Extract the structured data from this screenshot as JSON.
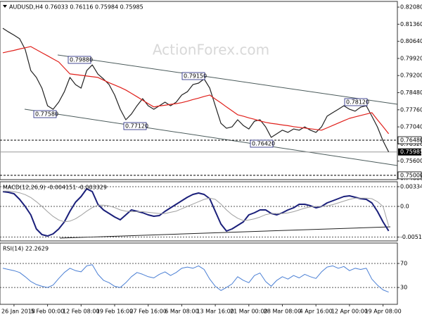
{
  "chart_data": [
    {
      "type": "line",
      "title": "AUDUSD,H4  0.76033 0.76116 0.75984 0.75985",
      "watermark": "ActionForex.com",
      "categories": [
        null,
        null,
        "26 Jan 2018",
        null,
        null,
        null,
        null,
        null,
        "5 Feb 00:00",
        null,
        null,
        null,
        null,
        null,
        "12 Feb 08:00",
        null,
        null,
        null,
        null,
        null,
        "19 Feb 16:00",
        null,
        null,
        null,
        null,
        null,
        "27 Feb 16:00",
        null,
        null,
        null,
        null,
        null,
        "6 Mar 08:00",
        null,
        null,
        null,
        null,
        null,
        "13 Mar 16:00",
        null,
        null,
        null,
        null,
        null,
        "21 Mar 00:00",
        null,
        null,
        null,
        null,
        null,
        "28 Mar 08:00",
        null,
        null,
        null,
        null,
        null,
        "4 Apr 16:00",
        null,
        null,
        null,
        null,
        null,
        "12 Apr 00:00",
        null,
        null,
        null,
        null,
        null,
        "19 Apr 08:00",
        null
      ],
      "series": [
        {
          "name": "Close",
          "color": "#222222",
          "width": 1.2,
          "values": [
            0.8119,
            0.8104,
            0.809,
            0.8075,
            0.803,
            0.7941,
            0.7912,
            0.7867,
            0.7793,
            0.7778,
            0.7808,
            0.7852,
            0.7912,
            0.7882,
            0.7867,
            0.7941,
            0.7965,
            0.7926,
            0.7906,
            0.7882,
            0.7838,
            0.7778,
            0.7734,
            0.7758,
            0.7793,
            0.7823,
            0.7793,
            0.7778,
            0.7793,
            0.7808,
            0.7793,
            0.7808,
            0.7838,
            0.7852,
            0.7882,
            0.7888,
            0.7906,
            0.7867,
            0.7793,
            0.7719,
            0.7698,
            0.7704,
            0.7734,
            0.771,
            0.7695,
            0.7728,
            0.7734,
            0.7704,
            0.766,
            0.7675,
            0.769,
            0.7681,
            0.7695,
            0.769,
            0.7704,
            0.769,
            0.7681,
            0.7704,
            0.7749,
            0.7764,
            0.7778,
            0.7793,
            0.7778,
            0.777,
            0.7787,
            0.7793,
            0.7749,
            0.7704,
            0.7645,
            0.75985
          ]
        },
        {
          "name": "MA",
          "color": "#e0201b",
          "width": 1.2,
          "values": [
            0.8016,
            0.8021,
            0.8026,
            0.8032,
            0.8037,
            0.8042,
            0.8029,
            0.8016,
            0.8003,
            0.799,
            0.7977,
            0.7952,
            0.7927,
            0.7924,
            0.7921,
            0.7918,
            0.7915,
            0.7912,
            0.7901,
            0.789,
            0.788,
            0.787,
            0.7859,
            0.7845,
            0.7831,
            0.7816,
            0.7802,
            0.7788,
            0.7792,
            0.7795,
            0.7799,
            0.7802,
            0.7806,
            0.7812,
            0.7819,
            0.7825,
            0.7832,
            0.7838,
            0.7821,
            0.7805,
            0.7788,
            0.7772,
            0.7755,
            0.7749,
            0.7742,
            0.7736,
            0.7729,
            0.7723,
            0.7719,
            0.7716,
            0.7712,
            0.7709,
            0.7705,
            0.7702,
            0.7699,
            0.7696,
            0.7693,
            0.769,
            0.77,
            0.771,
            0.772,
            0.773,
            0.774,
            0.7746,
            0.7752,
            0.7758,
            0.7764,
            0.7734,
            0.7705,
            0.7675
          ]
        }
      ],
      "ylim": [
        0.7482,
        0.8232
      ],
      "yticks": [
        {
          "value": 0.8208,
          "label": "0.82080"
        },
        {
          "value": 0.8136,
          "label": "0.81360"
        },
        {
          "value": 0.8064,
          "label": "0.80640"
        },
        {
          "value": 0.7992,
          "label": "0.79920"
        },
        {
          "value": 0.792,
          "label": "0.79200"
        },
        {
          "value": 0.7848,
          "label": "0.78480"
        },
        {
          "value": 0.7776,
          "label": "0.77760"
        },
        {
          "value": 0.7704,
          "label": "0.77040"
        },
        {
          "value": 0.7632,
          "label": "0.76320"
        },
        {
          "value": 0.756,
          "label": "0.75600"
        },
        {
          "value": 0.7488,
          "label": "0.74880"
        }
      ],
      "levels": [
        {
          "value": 0.7648,
          "label": "0.76480"
        },
        {
          "value": 0.75,
          "label": "0.75000"
        }
      ],
      "last_label": {
        "value": 0.75985,
        "label": "0.75985"
      },
      "annotations": [
        "0.79880",
        "0.79150",
        "0.77580",
        "0.77120",
        "0.76420",
        "0.78120"
      ],
      "grid": false
    },
    {
      "type": "line",
      "title": "MACD(12,26,9) -0.004151 -0.003329",
      "series": [
        {
          "name": "MACD",
          "color": "#1a1f7a",
          "width": 2,
          "values": [
            0.00251,
            0.00239,
            0.00215,
            0.00119,
            0,
            -0.00143,
            -0.00382,
            -0.00478,
            -0.00501,
            -0.00466,
            -0.00382,
            -0.00263,
            -0.00084,
            0.00072,
            0.00167,
            0.00299,
            0.00251,
            0.00036,
            -0.0006,
            -0.00119,
            -0.00179,
            -0.00227,
            -0.00143,
            -0.0006,
            -0.00084,
            -0.00107,
            -0.00143,
            -0.00167,
            -0.00155,
            -0.00084,
            -0.00024,
            0.00036,
            0.00096,
            0.00155,
            0.00203,
            0.00227,
            0.00203,
            0.00131,
            -0.00084,
            -0.00299,
            -0.00418,
            -0.00382,
            -0.00322,
            -0.00263,
            -0.00143,
            -0.00107,
            -0.0006,
            -0.0006,
            -0.00119,
            -0.00143,
            -0.00107,
            -0.0006,
            -0.00024,
            0.00036,
            0.00036,
            0.00012,
            -0.00024,
            0,
            0.0006,
            0.00096,
            0.00131,
            0.00167,
            0.00179,
            0.00155,
            0.00131,
            0.00119,
            0.0006,
            -0.00084,
            -0.00263,
            -0.00415
          ]
        },
        {
          "name": "Signal",
          "color": "#a0a0a0",
          "width": 1,
          "values": [
            0.0026,
            0.0026,
            0.0025,
            0.0023,
            0.002,
            0.0015,
            0.0008,
            0,
            -0.0009,
            -0.0017,
            -0.0023,
            -0.0026,
            -0.0025,
            -0.0021,
            -0.0015,
            -0.0008,
            -0.0002,
            0.0002,
            0.0002,
            0.0001,
            -0.0002,
            -0.0006,
            -0.0008,
            -0.0009,
            -0.0009,
            -0.0009,
            -0.001,
            -0.0011,
            -0.0012,
            -0.0012,
            -0.001,
            -0.0008,
            -0.0004,
            0,
            0.0004,
            0.0008,
            0.0012,
            0.0014,
            0.0012,
            0.0004,
            -0.0006,
            -0.0014,
            -0.002,
            -0.0024,
            -0.0023,
            -0.0021,
            -0.0018,
            -0.0014,
            -0.0012,
            -0.0012,
            -0.0012,
            -0.0011,
            -0.0009,
            -0.0006,
            -0.0003,
            -0.0001,
            0,
            0,
            0.0001,
            0.0003,
            0.0006,
            0.0009,
            0.0012,
            0.0014,
            0.0014,
            0.0014,
            0.0013,
            0.0008,
            0,
            -0.0033
          ]
        }
      ],
      "ylim": [
        -0.00585,
        0.00418
      ],
      "yticks": [
        0.003345,
        {
          "value": 0,
          "label": "0.0"
        },
        -0.005197
      ],
      "grid": true
    },
    {
      "type": "line",
      "title": "RSI(14) 22.2629",
      "series": [
        {
          "name": "RSI",
          "color": "#4a7fd4",
          "width": 1,
          "values": [
            62,
            60,
            58,
            55,
            48,
            40,
            35,
            32,
            30,
            34,
            45,
            55,
            62,
            58,
            56,
            66,
            68,
            52,
            42,
            38,
            32,
            30,
            38,
            48,
            55,
            52,
            48,
            46,
            52,
            56,
            50,
            55,
            62,
            64,
            62,
            66,
            60,
            44,
            32,
            25,
            30,
            36,
            48,
            42,
            38,
            50,
            54,
            40,
            32,
            42,
            48,
            44,
            50,
            46,
            52,
            48,
            45,
            56,
            64,
            66,
            62,
            65,
            58,
            62,
            60,
            62,
            44,
            34,
            26,
            22.26
          ]
        }
      ],
      "ylim": [
        2,
        104
      ],
      "yticks": [
        70,
        30
      ],
      "grid": true
    }
  ]
}
